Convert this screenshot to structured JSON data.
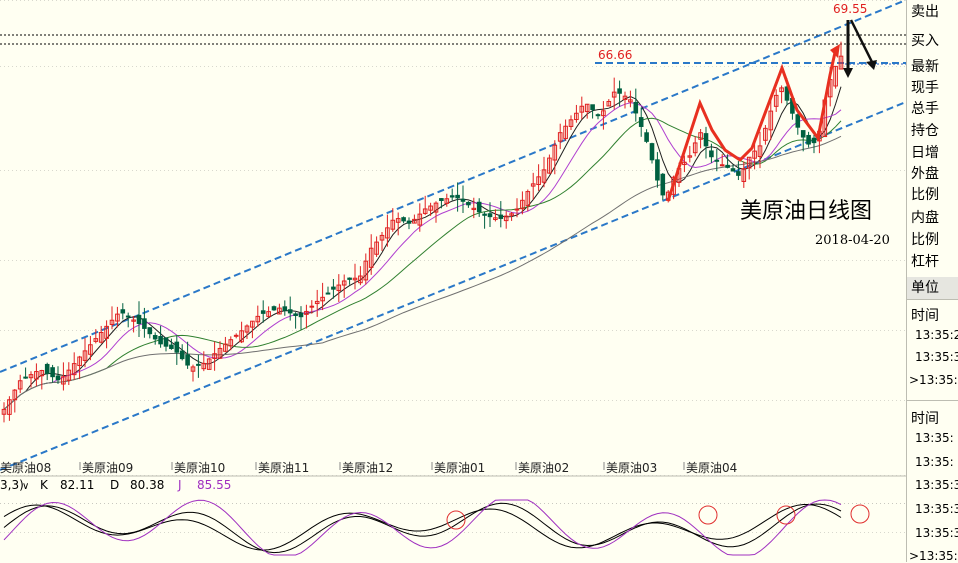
{
  "chart_data": {
    "type": "candlestick",
    "title": "美原油日线图",
    "date": "2018-04-20",
    "ylim": [
      42,
      71
    ],
    "annotations": {
      "high_label": "69.55",
      "resistance_label": "66.66"
    },
    "x_labels": [
      "美原油08",
      "美原油09",
      "美原油10",
      "美原油11",
      "美原油12",
      "美原油01",
      "美原油02",
      "美原油03",
      "美原油04"
    ],
    "indicator": {
      "param": "3,3)",
      "K_label": "K",
      "K": "82.11",
      "D_label": "D",
      "D": "80.38",
      "J_label": "J",
      "J": "85.55"
    },
    "price_anchors": [
      [
        0,
        45.3
      ],
      [
        20,
        47.5
      ],
      [
        40,
        48.2
      ],
      [
        60,
        47.5
      ],
      [
        80,
        49.0
      ],
      [
        100,
        50.4
      ],
      [
        120,
        51.8
      ],
      [
        140,
        51.0
      ],
      [
        160,
        49.8
      ],
      [
        175,
        49.4
      ],
      [
        190,
        48.3
      ],
      [
        205,
        48.6
      ],
      [
        220,
        49.5
      ],
      [
        240,
        50.5
      ],
      [
        260,
        51.6
      ],
      [
        280,
        52.0
      ],
      [
        300,
        51.4
      ],
      [
        315,
        52.3
      ],
      [
        330,
        53.0
      ],
      [
        345,
        53.7
      ],
      [
        360,
        53.9
      ],
      [
        370,
        55.6
      ],
      [
        380,
        56.3
      ],
      [
        395,
        57.6
      ],
      [
        410,
        57.2
      ],
      [
        425,
        58.1
      ],
      [
        440,
        58.6
      ],
      [
        455,
        58.9
      ],
      [
        470,
        58.3
      ],
      [
        485,
        57.7
      ],
      [
        500,
        57.5
      ],
      [
        515,
        57.9
      ],
      [
        530,
        59.4
      ],
      [
        545,
        60.6
      ],
      [
        560,
        62.8
      ],
      [
        575,
        63.9
      ],
      [
        585,
        64.7
      ],
      [
        600,
        63.8
      ],
      [
        615,
        65.4
      ],
      [
        630,
        64.9
      ],
      [
        640,
        63.4
      ],
      [
        650,
        61.7
      ],
      [
        655,
        60.3
      ],
      [
        665,
        58.6
      ],
      [
        675,
        60.3
      ],
      [
        690,
        61.4
      ],
      [
        700,
        62.9
      ],
      [
        710,
        61.4
      ],
      [
        720,
        60.9
      ],
      [
        730,
        60.6
      ],
      [
        740,
        60.1
      ],
      [
        750,
        61.4
      ],
      [
        760,
        62.0
      ],
      [
        770,
        64.0
      ],
      [
        780,
        65.8
      ],
      [
        790,
        64.4
      ],
      [
        800,
        62.8
      ],
      [
        810,
        62.0
      ],
      [
        818,
        62.4
      ],
      [
        825,
        64.9
      ],
      [
        832,
        66.5
      ],
      [
        840,
        67.4
      ],
      [
        846,
        68.2
      ]
    ]
  },
  "sidebar": {
    "labels": [
      "卖出",
      "买入",
      "最新",
      "现手",
      "总手",
      "持仓",
      "日增",
      "外盘",
      "比例",
      "内盘",
      "比例",
      "杠杆"
    ],
    "unit": "单位",
    "time_header1": "时间",
    "times1": [
      "13:35:2",
      "13:35:3",
      ">13:35:4"
    ],
    "time_header2": "时间",
    "times2": [
      "13:35:",
      "13:35:",
      "13:35:3",
      "13:35:3",
      "13:35:3",
      "13:35:3",
      ">13:35:4"
    ]
  },
  "colors": {
    "bull": "#e02020",
    "bear": "#006040",
    "channel": "#2a78c8",
    "ma5": "#202020",
    "ma10": "#b040d0",
    "ma20": "#308030",
    "ma60": "#707070"
  }
}
